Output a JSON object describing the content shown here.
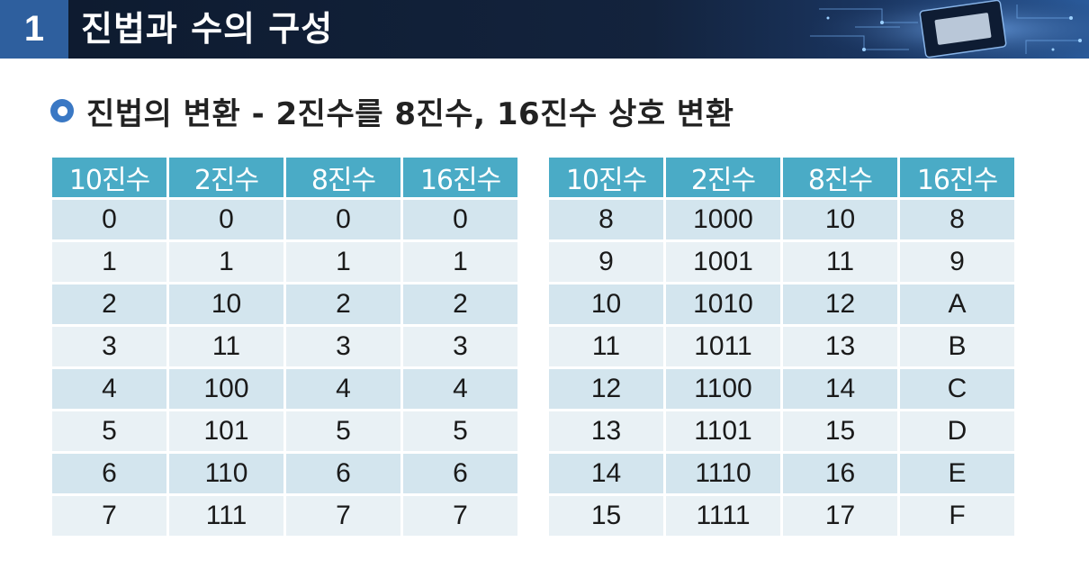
{
  "header": {
    "number": "1",
    "title": "진법과 수의 구성"
  },
  "subtitle": "진법의 변환 - 2진수를 8진수, 16진수 상호 변환",
  "tables": {
    "headers": [
      "10진수",
      "2진수",
      "8진수",
      "16진수"
    ],
    "left_rows": [
      [
        "0",
        "0",
        "0",
        "0"
      ],
      [
        "1",
        "1",
        "1",
        "1"
      ],
      [
        "2",
        "10",
        "2",
        "2"
      ],
      [
        "3",
        "11",
        "3",
        "3"
      ],
      [
        "4",
        "100",
        "4",
        "4"
      ],
      [
        "5",
        "101",
        "5",
        "5"
      ],
      [
        "6",
        "110",
        "6",
        "6"
      ],
      [
        "7",
        "111",
        "7",
        "7"
      ]
    ],
    "right_rows": [
      [
        "8",
        "1000",
        "10",
        "8"
      ],
      [
        "9",
        "1001",
        "11",
        "9"
      ],
      [
        "10",
        "1010",
        "12",
        "A"
      ],
      [
        "11",
        "1011",
        "13",
        "B"
      ],
      [
        "12",
        "1100",
        "14",
        "C"
      ],
      [
        "13",
        "1101",
        "15",
        "D"
      ],
      [
        "14",
        "1110",
        "16",
        "E"
      ],
      [
        "15",
        "1111",
        "17",
        "F"
      ]
    ]
  },
  "colors": {
    "header_bg": "#13233d",
    "header_number_bg": "#2e5f9e",
    "table_header_bg": "#4aabc6",
    "row_dark": "#d3e5ee",
    "row_light": "#e9f1f5",
    "bullet": "#3a78c4"
  }
}
